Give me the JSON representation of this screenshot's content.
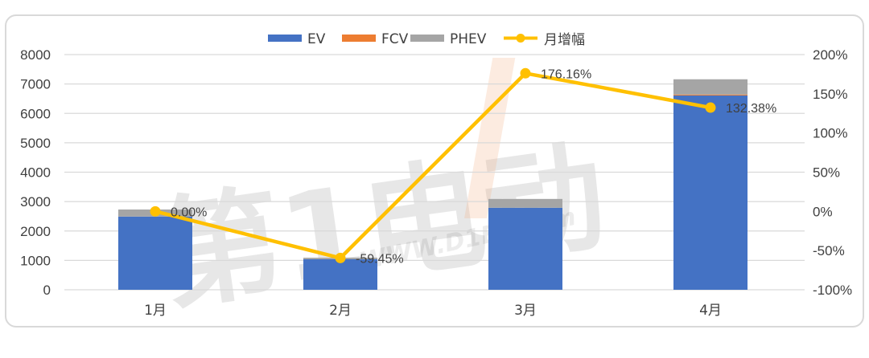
{
  "chart_data": {
    "type": "bar",
    "subtype": "stacked-bar-with-line",
    "title": "",
    "categories": [
      "1月",
      "2月",
      "3月",
      "4月"
    ],
    "series": [
      {
        "name": "EV",
        "type": "bar",
        "axis": "left",
        "color": "#4472c4",
        "values": [
          2490,
          1040,
          2790,
          6610
        ]
      },
      {
        "name": "FCV",
        "type": "bar",
        "axis": "left",
        "color": "#ed7d31",
        "values": [
          0,
          0,
          0,
          30
        ]
      },
      {
        "name": "PHEV",
        "type": "bar",
        "axis": "left",
        "color": "#a5a5a5",
        "values": [
          240,
          50,
          300,
          520
        ]
      },
      {
        "name": "月增幅",
        "type": "line",
        "axis": "right",
        "color": "#ffc000",
        "values": [
          0.0,
          -59.45,
          176.16,
          132.38
        ],
        "labels": [
          "0.00%",
          "-59.45%",
          "176.16%",
          "132.38%"
        ]
      }
    ],
    "left_axis": {
      "min": 0,
      "max": 8000,
      "step": 1000,
      "ticks": [
        "0",
        "1000",
        "2000",
        "3000",
        "4000",
        "5000",
        "6000",
        "7000",
        "8000"
      ]
    },
    "right_axis": {
      "min": -100,
      "max": 200,
      "step": 50,
      "ticks": [
        "-100%",
        "-50%",
        "0%",
        "50%",
        "100%",
        "150%",
        "200%"
      ]
    },
    "xlabel": "",
    "ylabel": "",
    "grid": true,
    "legend_position": "top"
  },
  "legend": {
    "items": [
      {
        "label": "EV",
        "color": "#4472c4"
      },
      {
        "label": "FCV",
        "color": "#ed7d31"
      },
      {
        "label": "PHEV",
        "color": "#a5a5a5"
      },
      {
        "label": "月增幅",
        "color": "#ffc000"
      }
    ]
  },
  "watermark": {
    "text": "第1电动",
    "url_text": "WWW.D1EV.com"
  }
}
